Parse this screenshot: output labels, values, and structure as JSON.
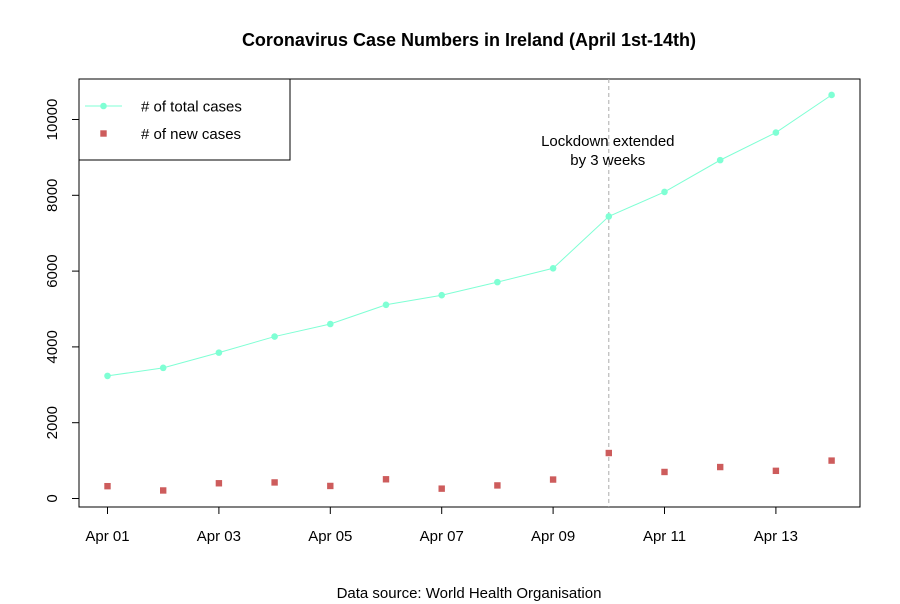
{
  "chart_data": {
    "type": "line",
    "title": "Coronavirus Case Numbers in Ireland (April 1st-14th)",
    "xlabel": "Data source: World Health Organisation",
    "ylabel": "",
    "x": [
      "Apr 01",
      "Apr 02",
      "Apr 03",
      "Apr 04",
      "Apr 05",
      "Apr 06",
      "Apr 07",
      "Apr 08",
      "Apr 09",
      "Apr 10",
      "Apr 11",
      "Apr 12",
      "Apr 13",
      "Apr 14"
    ],
    "x_tick_labels": [
      "Apr 01",
      "Apr 03",
      "Apr 05",
      "Apr 07",
      "Apr 09",
      "Apr 11",
      "Apr 13"
    ],
    "y_ticks": [
      0,
      2000,
      4000,
      6000,
      8000,
      10000
    ],
    "ylim": [
      -200,
      10900
    ],
    "series": [
      {
        "name": "# of total cases",
        "style": "line+points",
        "color": "#7FFFD4",
        "values": [
          3235,
          3447,
          3849,
          4273,
          4604,
          5111,
          5364,
          5709,
          6074,
          7443,
          8089,
          8928,
          9655,
          10647
        ]
      },
      {
        "name": "# of new cases",
        "style": "points",
        "color": "#CD5C5C",
        "values": [
          325,
          212,
          402,
          424,
          331,
          507,
          260,
          345,
          500,
          1200,
          700,
          830,
          730,
          1000
        ]
      }
    ],
    "annotation": {
      "x": "Apr 10",
      "lines": [
        "Lockdown extended",
        "by 3 weeks"
      ],
      "line_color": "#aaaaaa"
    },
    "legend_position": "top-left",
    "grid": false
  }
}
